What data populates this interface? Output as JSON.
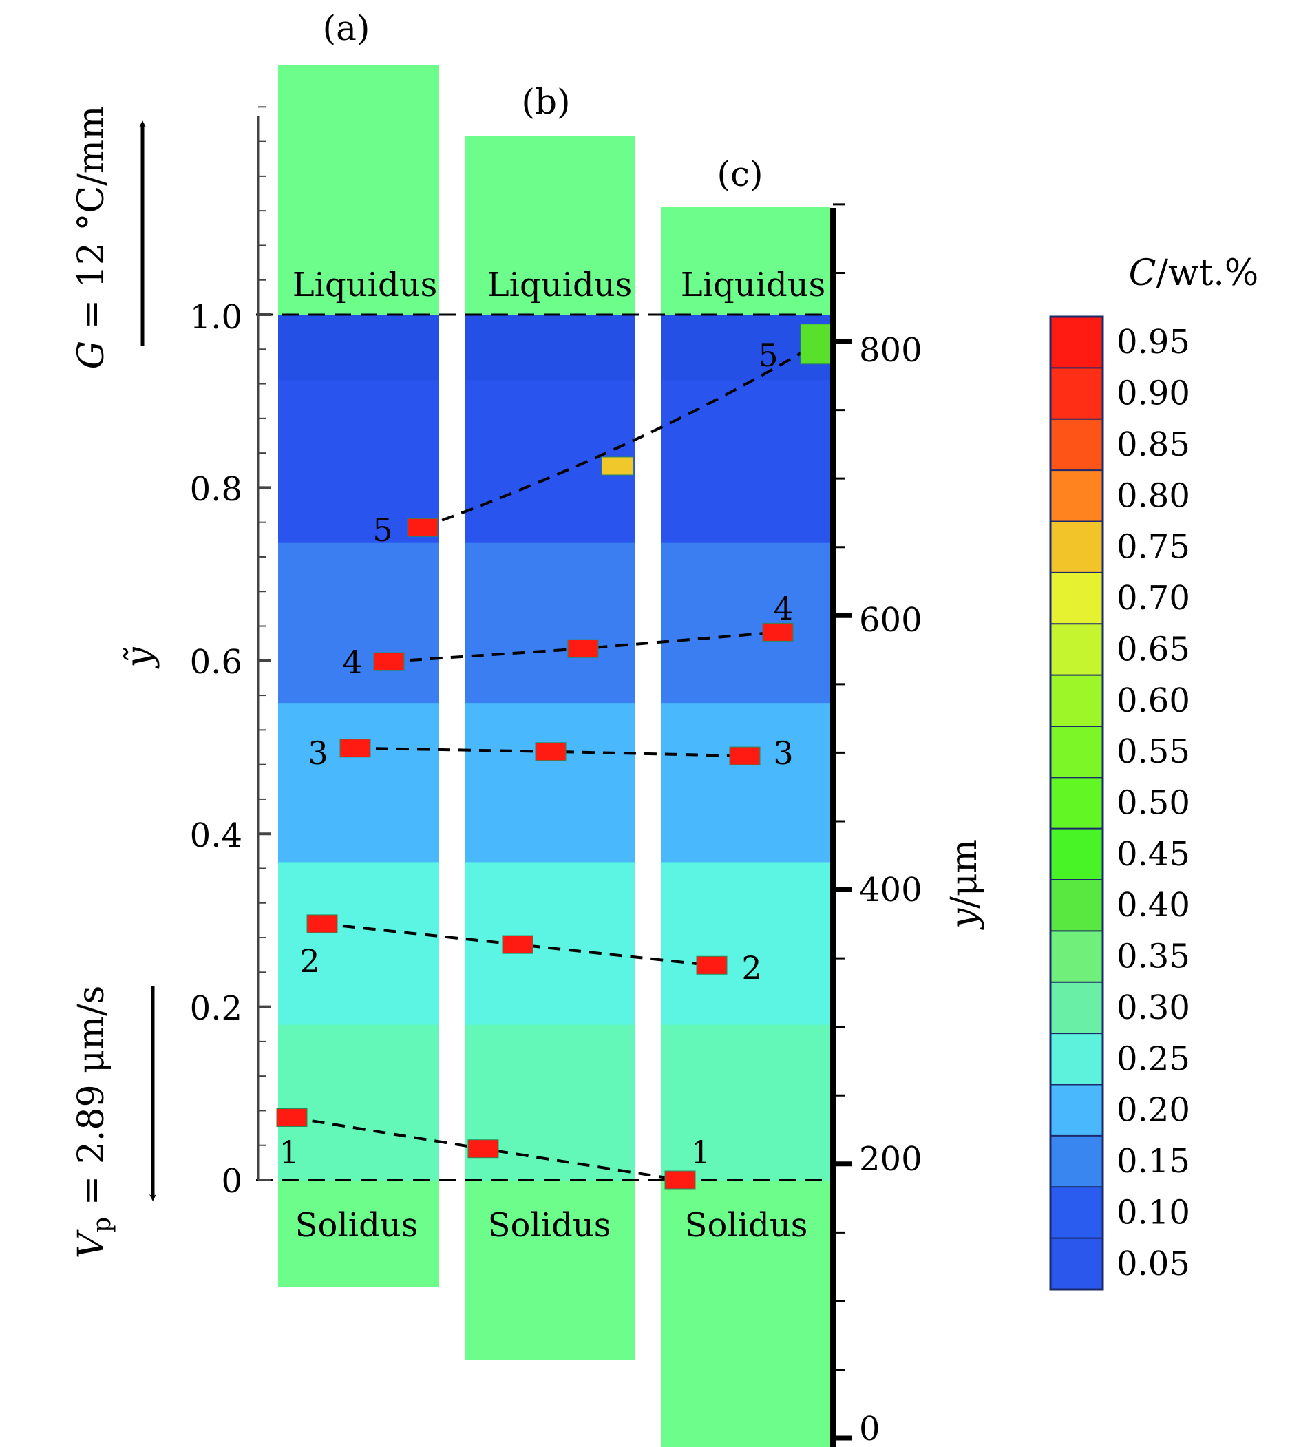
{
  "figure": {
    "panel_labels": [
      "(a)",
      "(b)",
      "(c)"
    ],
    "liquidus_label": "Liquidus",
    "solidus_label": "Solidus",
    "left_axis": {
      "label": "ỹ",
      "ticks": [
        {
          "value": 0,
          "label": "0"
        },
        {
          "value": 0.2,
          "label": "0.2"
        },
        {
          "value": 0.4,
          "label": "0.4"
        },
        {
          "value": 0.6,
          "label": "0.6"
        },
        {
          "value": 0.8,
          "label": "0.8"
        },
        {
          "value": 1.0,
          "label": "1.0"
        }
      ],
      "minor_step": 0.04,
      "range": [
        0,
        1.24
      ]
    },
    "right_axis": {
      "label_var": "y",
      "label_unit": "/μm",
      "ticks": [
        {
          "value": 0,
          "label": "0"
        },
        {
          "value": 200,
          "label": "200"
        },
        {
          "value": 400,
          "label": "400"
        },
        {
          "value": 600,
          "label": "600"
        },
        {
          "value": 800,
          "label": "800"
        }
      ],
      "minor_step": 50,
      "range": [
        0,
        900
      ]
    },
    "gradient_annotation": {
      "var": "G",
      "text": " = 12 °C/mm",
      "direction": "up"
    },
    "velocity_annotation": {
      "var": "V",
      "subscript": "p",
      "text": " = 2.89 μm/s",
      "direction": "down"
    },
    "colorbar": {
      "title_var": "C",
      "title_unit": "/wt.%",
      "labels": [
        "0.95",
        "0.90",
        "0.85",
        "0.80",
        "0.75",
        "0.70",
        "0.65",
        "0.60",
        "0.55",
        "0.50",
        "0.45",
        "0.40",
        "0.35",
        "0.30",
        "0.25",
        "0.20",
        "0.15",
        "0.10",
        "0.05"
      ],
      "colors": [
        "#ff1a12",
        "#ff2e14",
        "#ff5418",
        "#ff8420",
        "#f2c42a",
        "#e6f230",
        "#c4f52e",
        "#9cf628",
        "#7cf626",
        "#62f624",
        "#48f426",
        "#58e840",
        "#70f07a",
        "#6af0a6",
        "#5cf2dc",
        "#4ab8fc",
        "#3a86f0",
        "#2a5cf0",
        "#2b57ec"
      ]
    },
    "domain_color": "#6cfd8a",
    "bands": [
      {
        "from": 0.0,
        "to": 0.18,
        "color": "#64f8b8"
      },
      {
        "from": 0.18,
        "to": 0.368,
        "color": "#5cf4e2"
      },
      {
        "from": 0.368,
        "to": 0.552,
        "color": "#4ab8fc"
      },
      {
        "from": 0.552,
        "to": 0.737,
        "color": "#3a7ef2"
      },
      {
        "from": 0.737,
        "to": 0.925,
        "color": "#2a54ee"
      },
      {
        "from": 0.925,
        "to": 1.0,
        "color": "#2450e6"
      }
    ],
    "particles": [
      {
        "id": "1",
        "points": [
          {
            "panel": "a",
            "y": 0.072
          },
          {
            "panel": "b",
            "y": 0.036
          },
          {
            "panel": "c",
            "y": 0.0
          }
        ]
      },
      {
        "id": "2",
        "points": [
          {
            "panel": "a",
            "y": 0.296
          },
          {
            "panel": "b",
            "y": 0.272
          },
          {
            "panel": "c",
            "y": 0.248
          }
        ]
      },
      {
        "id": "3",
        "points": [
          {
            "panel": "a",
            "y": 0.499
          },
          {
            "panel": "b",
            "y": 0.495
          },
          {
            "panel": "c",
            "y": 0.49
          }
        ]
      },
      {
        "id": "4",
        "points": [
          {
            "panel": "a",
            "y": 0.599
          },
          {
            "panel": "b",
            "y": 0.614
          },
          {
            "panel": "c",
            "y": 0.633
          }
        ]
      },
      {
        "id": "5",
        "points": [
          {
            "panel": "a",
            "y": 0.754
          },
          {
            "panel": "b",
            "y": 0.825,
            "color": "#f0c82c"
          },
          {
            "panel": "c",
            "y": 0.966,
            "color": "#58e02a"
          }
        ]
      }
    ]
  }
}
